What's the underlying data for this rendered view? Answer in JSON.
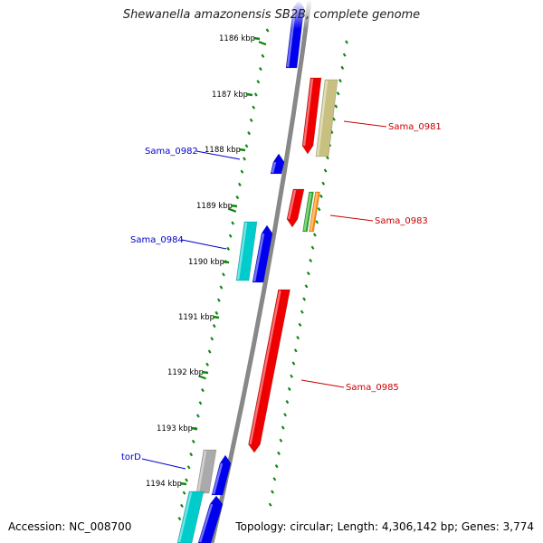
{
  "title": "Shewanella amazonensis SB2B, complete genome",
  "footer": {
    "accession": "Accession: NC_008700",
    "summary": "Topology: circular; Length: 4,306,142 bp; Genes: 3,774"
  },
  "kbp_labels": [
    "1186 kbp",
    "1187 kbp",
    "1188 kbp",
    "1189 kbp",
    "1190 kbp",
    "1191 kbp",
    "1192 kbp",
    "1193 kbp",
    "1194 kbp"
  ],
  "colors": {
    "forward": "#0000ee",
    "reverse": "#ee0000",
    "cyan": "#00cccc",
    "khaki": "#c8c080",
    "green": "#22aa22",
    "orange": "#ff8800",
    "grey": "#aaaaaa",
    "tick": "#118811",
    "backbone": "#888888"
  },
  "gene_labels": [
    {
      "name": "Sama_0981",
      "color": "#cc0000"
    },
    {
      "name": "Sama_0982",
      "color": "#0000cc"
    },
    {
      "name": "Sama_0983",
      "color": "#cc0000"
    },
    {
      "name": "Sama_0984",
      "color": "#0000cc"
    },
    {
      "name": "Sama_0985",
      "color": "#cc0000"
    },
    {
      "name": "torD",
      "color": "#0000cc"
    }
  ]
}
